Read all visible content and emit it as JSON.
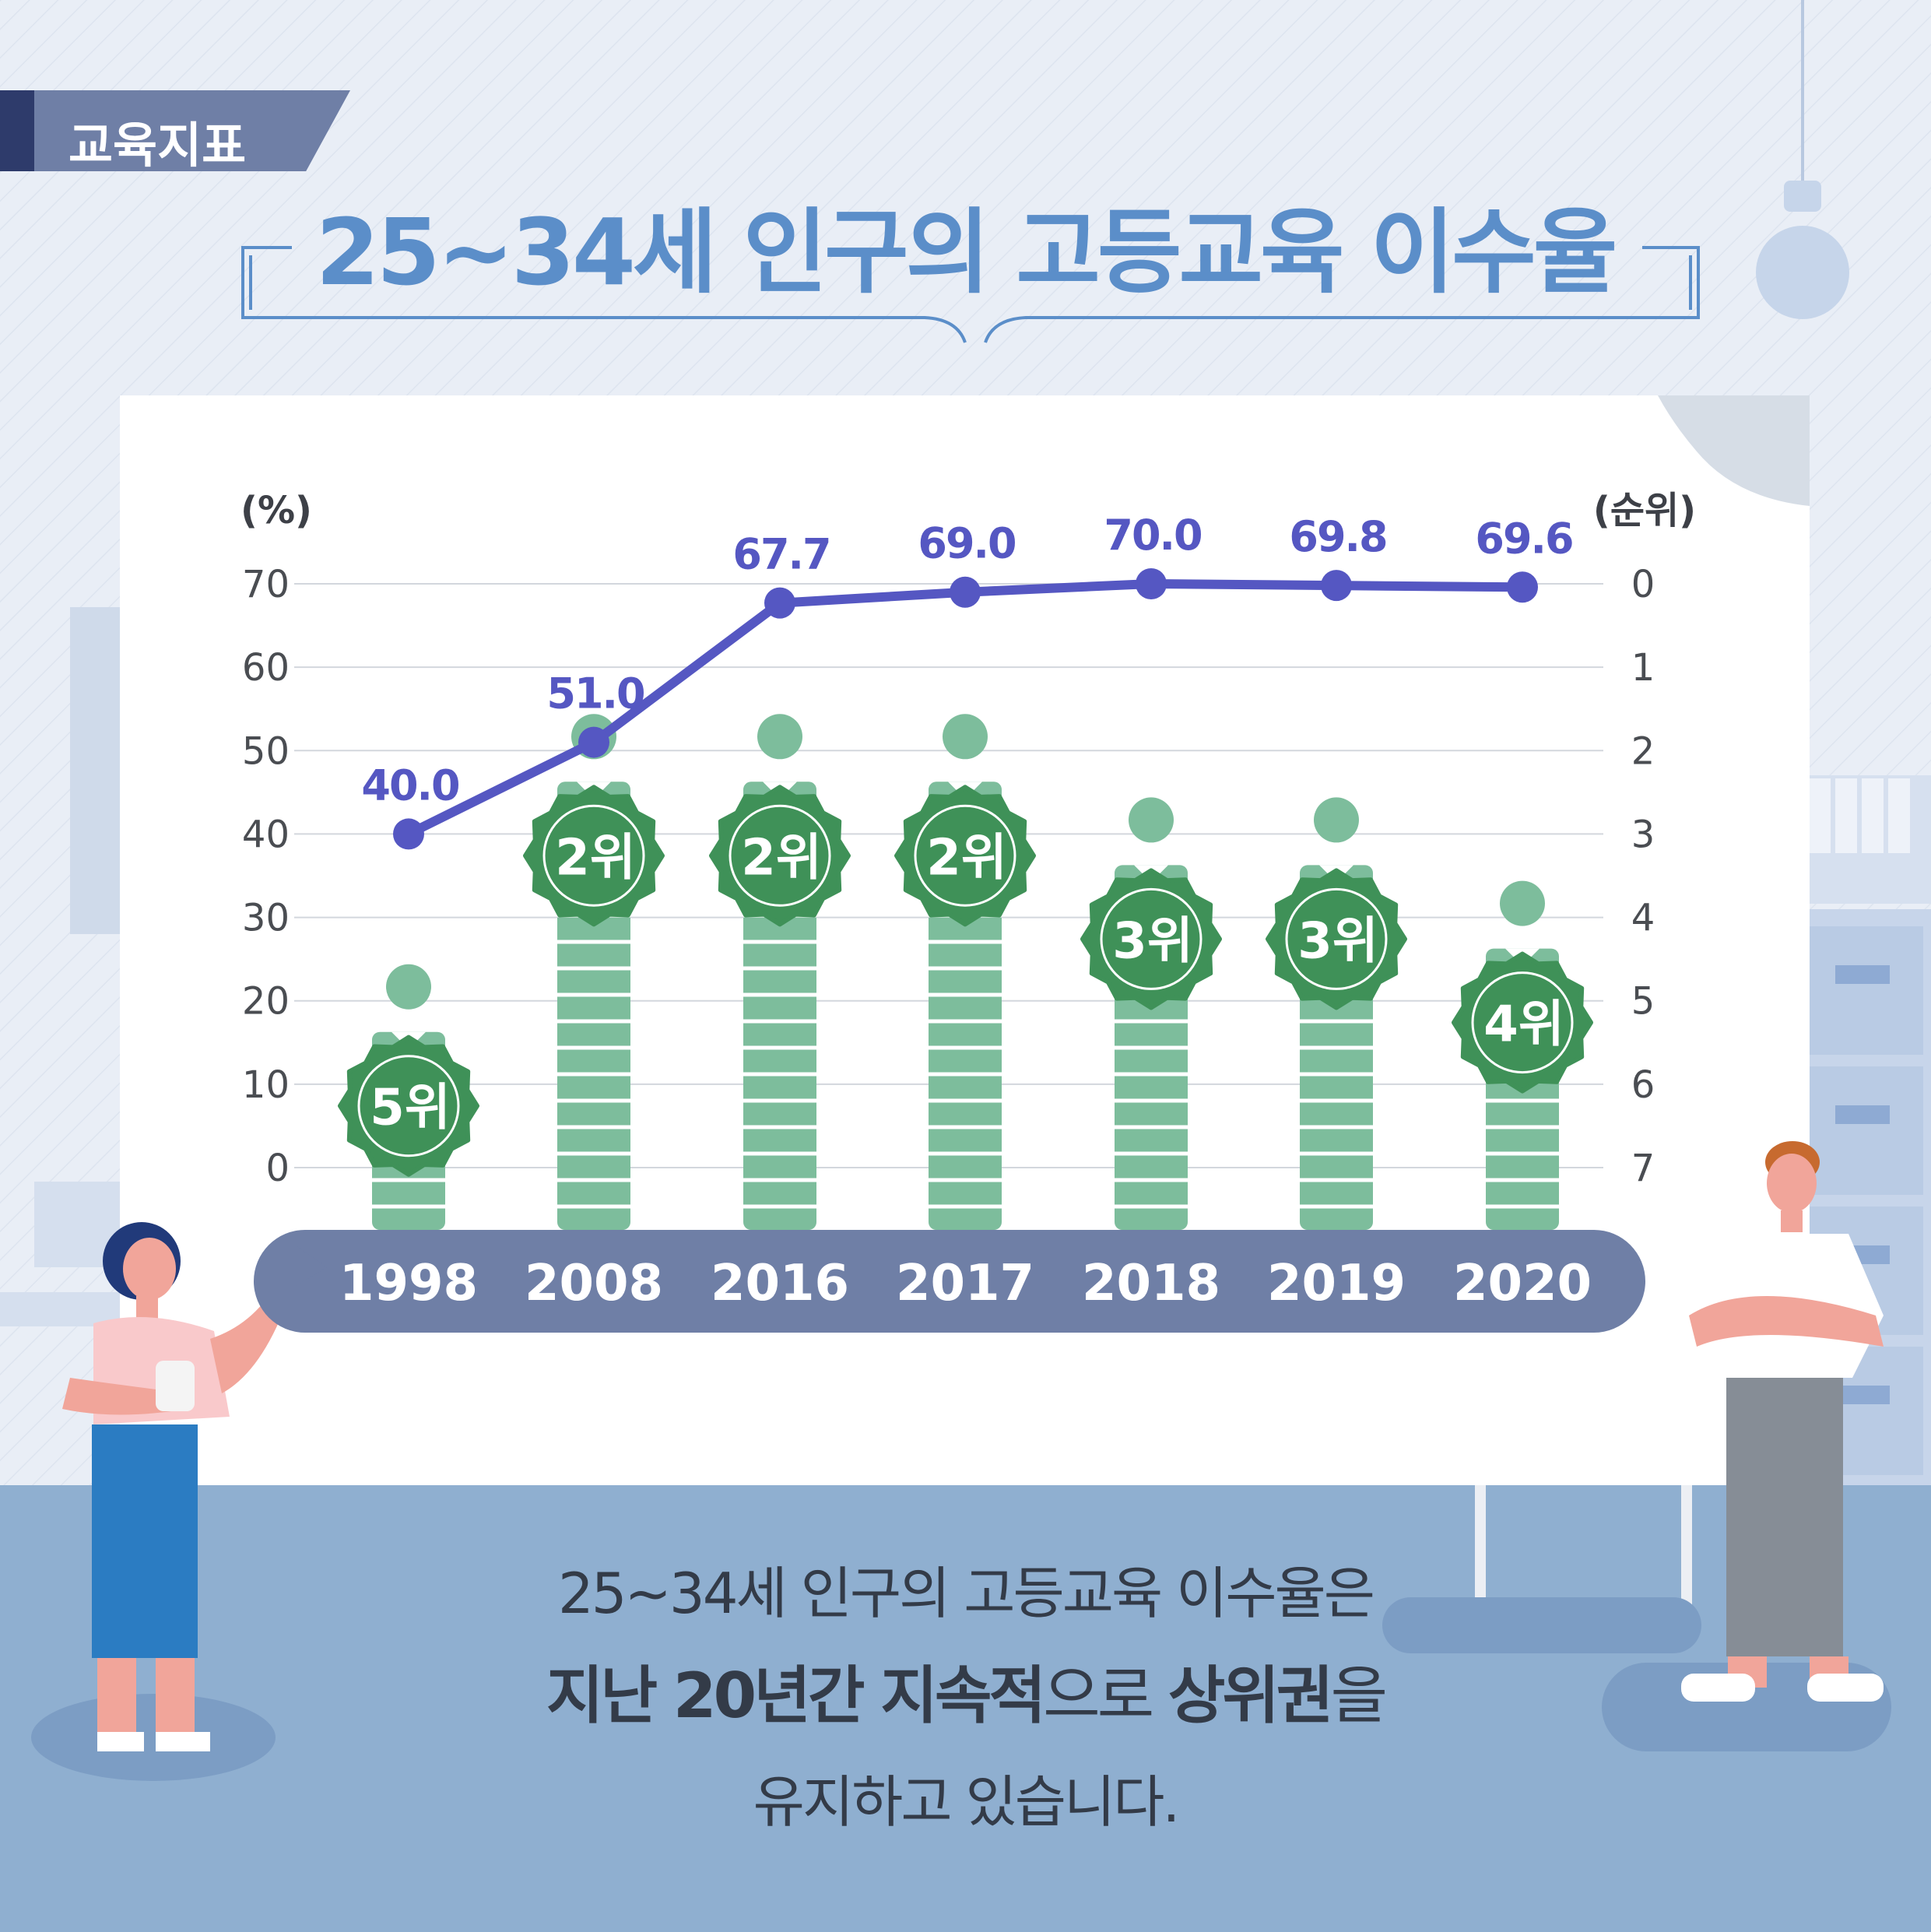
{
  "header": {
    "tag": "교육지표",
    "title": "25~34세 인구의 고등교육 이수율"
  },
  "chart_data": {
    "type": "line",
    "y_left_label": "(%)",
    "y_right_label": "(순위)",
    "ylim": [
      0,
      70
    ],
    "y_ticks": [
      0,
      10,
      20,
      30,
      40,
      50,
      60,
      70
    ],
    "y2lim": [
      0,
      7
    ],
    "y2_ticks": [
      0,
      1,
      2,
      3,
      4,
      5,
      6,
      7
    ],
    "categories": [
      "1998",
      "2008",
      "2016",
      "2017",
      "2018",
      "2019",
      "2020"
    ],
    "series": [
      {
        "values": [
          40.0,
          51.0,
          67.7,
          69.0,
          70.0,
          69.8,
          69.6
        ],
        "labels": [
          "40.0",
          "51.0",
          "67.7",
          "69.0",
          "70.0",
          "69.8",
          "69.6"
        ]
      },
      {
        "values": [
          5,
          2,
          2,
          2,
          3,
          3,
          4
        ],
        "labels": [
          "5위",
          "2위",
          "2위",
          "2위",
          "3위",
          "3위",
          "4위"
        ]
      }
    ],
    "colors": {
      "line": "#5557c2",
      "bar": "#7dbd9c",
      "badge": "#3f9158",
      "axis_band": "#6f7fa6"
    }
  },
  "caption": {
    "line1": "25~34세 인구의 고등교육 이수율은",
    "line2_a": "지난 20년간 지속적",
    "line2_b": "으로 ",
    "line2_c": "상위권",
    "line2_d": "을",
    "line3": "유지하고 있습니다."
  }
}
